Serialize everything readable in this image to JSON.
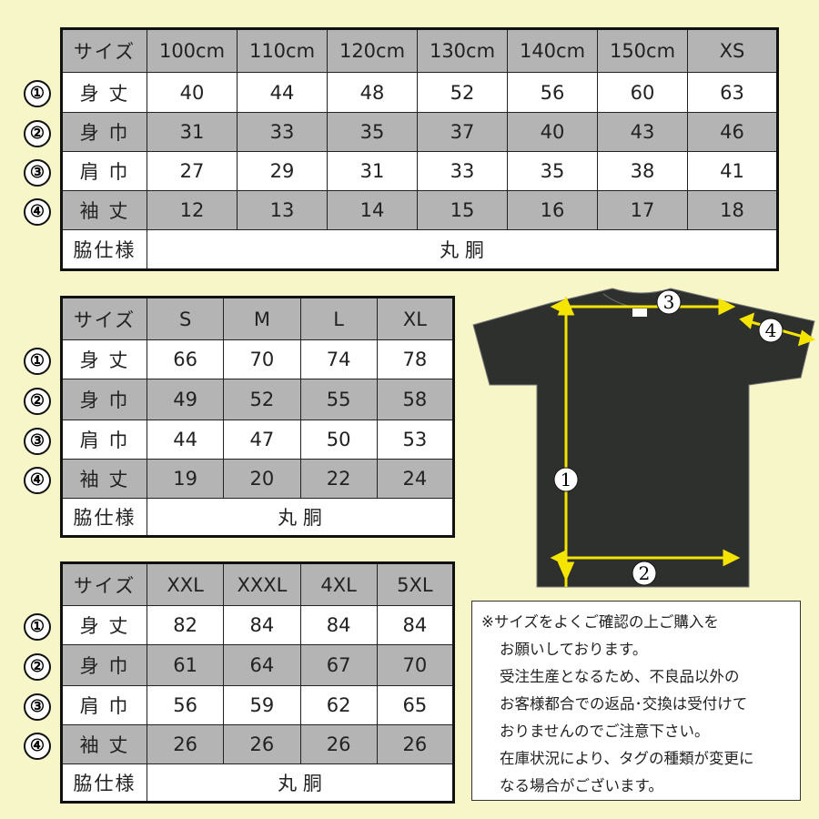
{
  "markers": [
    "①",
    "②",
    "③",
    "④"
  ],
  "row_labels": {
    "header": "サイズ",
    "r1": "身 丈",
    "r2": "身 巾",
    "r3": "肩 巾",
    "r4": "袖 丈",
    "side": "脇仕様"
  },
  "tables": [
    {
      "sizes": [
        "100cm",
        "110cm",
        "120cm",
        "130cm",
        "140cm",
        "150cm",
        "XS"
      ],
      "rows": [
        [
          "40",
          "44",
          "48",
          "52",
          "56",
          "60",
          "63"
        ],
        [
          "31",
          "33",
          "35",
          "37",
          "40",
          "43",
          "46"
        ],
        [
          "27",
          "29",
          "31",
          "33",
          "35",
          "38",
          "41"
        ],
        [
          "12",
          "13",
          "14",
          "15",
          "16",
          "17",
          "18"
        ]
      ],
      "side": "丸 胴"
    },
    {
      "sizes": [
        "S",
        "M",
        "L",
        "XL"
      ],
      "rows": [
        [
          "66",
          "70",
          "74",
          "78"
        ],
        [
          "49",
          "52",
          "55",
          "58"
        ],
        [
          "44",
          "47",
          "50",
          "53"
        ],
        [
          "19",
          "20",
          "22",
          "24"
        ]
      ],
      "side": "丸 胴"
    },
    {
      "sizes": [
        "XXL",
        "XXXL",
        "4XL",
        "5XL"
      ],
      "rows": [
        [
          "82",
          "84",
          "84",
          "84"
        ],
        [
          "61",
          "64",
          "67",
          "70"
        ],
        [
          "56",
          "59",
          "62",
          "65"
        ],
        [
          "26",
          "26",
          "26",
          "26"
        ]
      ],
      "side": "丸 胴"
    }
  ],
  "note": [
    "※サイズをよくご確認の上ご購入を",
    "お願いしております。",
    "受注生産となるため、不良品以外の",
    "お客様都合での返品･交換は受付けて",
    "おりませんのでご注意下さい。",
    "在庫状況により、タグの種類が変更に",
    "なる場合がございます。"
  ],
  "diagram": {
    "labels": [
      "1",
      "2",
      "3",
      "4"
    ],
    "arrow_color": "#f5e400",
    "shirt_color": "#2e302e"
  }
}
